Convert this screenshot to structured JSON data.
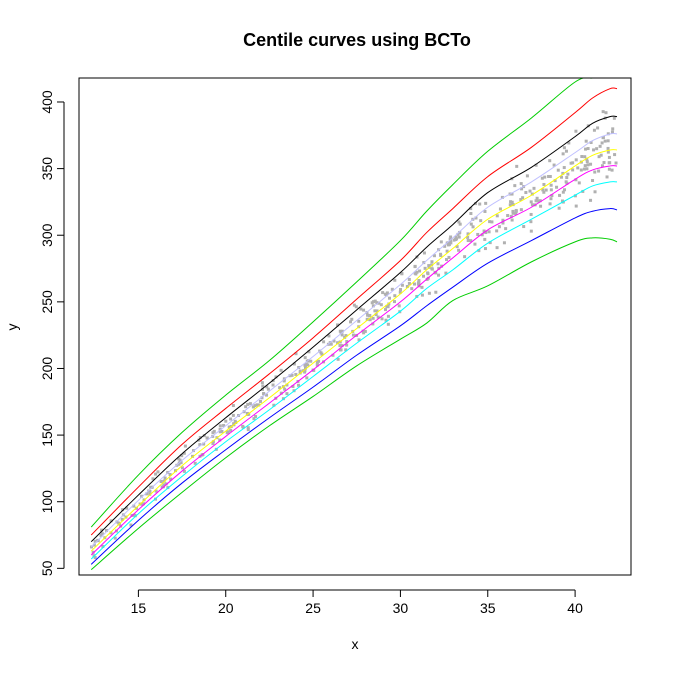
{
  "chart_data": {
    "type": "line",
    "title": "Centile curves using BCTo",
    "xlabel": "x",
    "ylabel": "y",
    "xlim": [
      11.6,
      43.2
    ],
    "ylim": [
      45,
      418
    ],
    "x_ticks": [
      15,
      20,
      25,
      30,
      35,
      40
    ],
    "y_ticks": [
      50,
      100,
      150,
      200,
      250,
      300,
      350,
      400
    ],
    "grid": false,
    "legend": "none",
    "x": [
      12.3,
      15,
      17.5,
      20,
      22.5,
      25,
      27.5,
      30,
      31.5,
      33,
      35,
      37.5,
      40,
      41,
      42,
      42.4
    ],
    "series": [
      {
        "color": "#00cd00",
        "values": [
          49,
          80,
          107,
          133,
          157,
          179,
          202,
          222,
          234,
          251,
          262,
          280,
          295,
          298,
          297,
          295
        ]
      },
      {
        "color": "#0000ff",
        "values": [
          53,
          86,
          114,
          139,
          163,
          186,
          210,
          232,
          247,
          261,
          279,
          296,
          313,
          318,
          320,
          319
        ]
      },
      {
        "color": "#00ffff",
        "values": [
          57,
          91,
          119,
          145,
          169,
          194,
          219,
          243,
          260,
          274,
          294,
          312,
          330,
          337,
          340,
          340
        ]
      },
      {
        "color": "#ff00ff",
        "values": [
          60,
          94,
          123,
          149,
          174,
          199,
          225,
          250,
          267,
          283,
          304,
          321,
          342,
          349,
          352,
          352
        ]
      },
      {
        "color": "#ffff00",
        "values": [
          63,
          97,
          127,
          153,
          178,
          204,
          230,
          256,
          274,
          290,
          312,
          330,
          352,
          360,
          364,
          364
        ]
      },
      {
        "color": "#c0c0ff",
        "values": [
          66,
          101,
          131,
          157,
          183,
          209,
          236,
          263,
          281,
          298,
          321,
          340,
          362,
          371,
          376,
          376
        ]
      },
      {
        "color": "#000000",
        "values": [
          70,
          105,
          136,
          163,
          189,
          216,
          244,
          272,
          291,
          308,
          332,
          351,
          374,
          384,
          389,
          389
        ]
      },
      {
        "color": "#ff0000",
        "values": [
          75,
          111,
          143,
          170,
          196,
          223,
          252,
          281,
          302,
          320,
          344,
          366,
          392,
          403,
          410,
          410
        ]
      },
      {
        "color": "#00cd00",
        "values": [
          81,
          120,
          152,
          180,
          206,
          235,
          265,
          296,
          318,
          338,
          363,
          388,
          415,
          418,
          418,
          418
        ]
      }
    ],
    "points_color": "#b0b0b0"
  }
}
